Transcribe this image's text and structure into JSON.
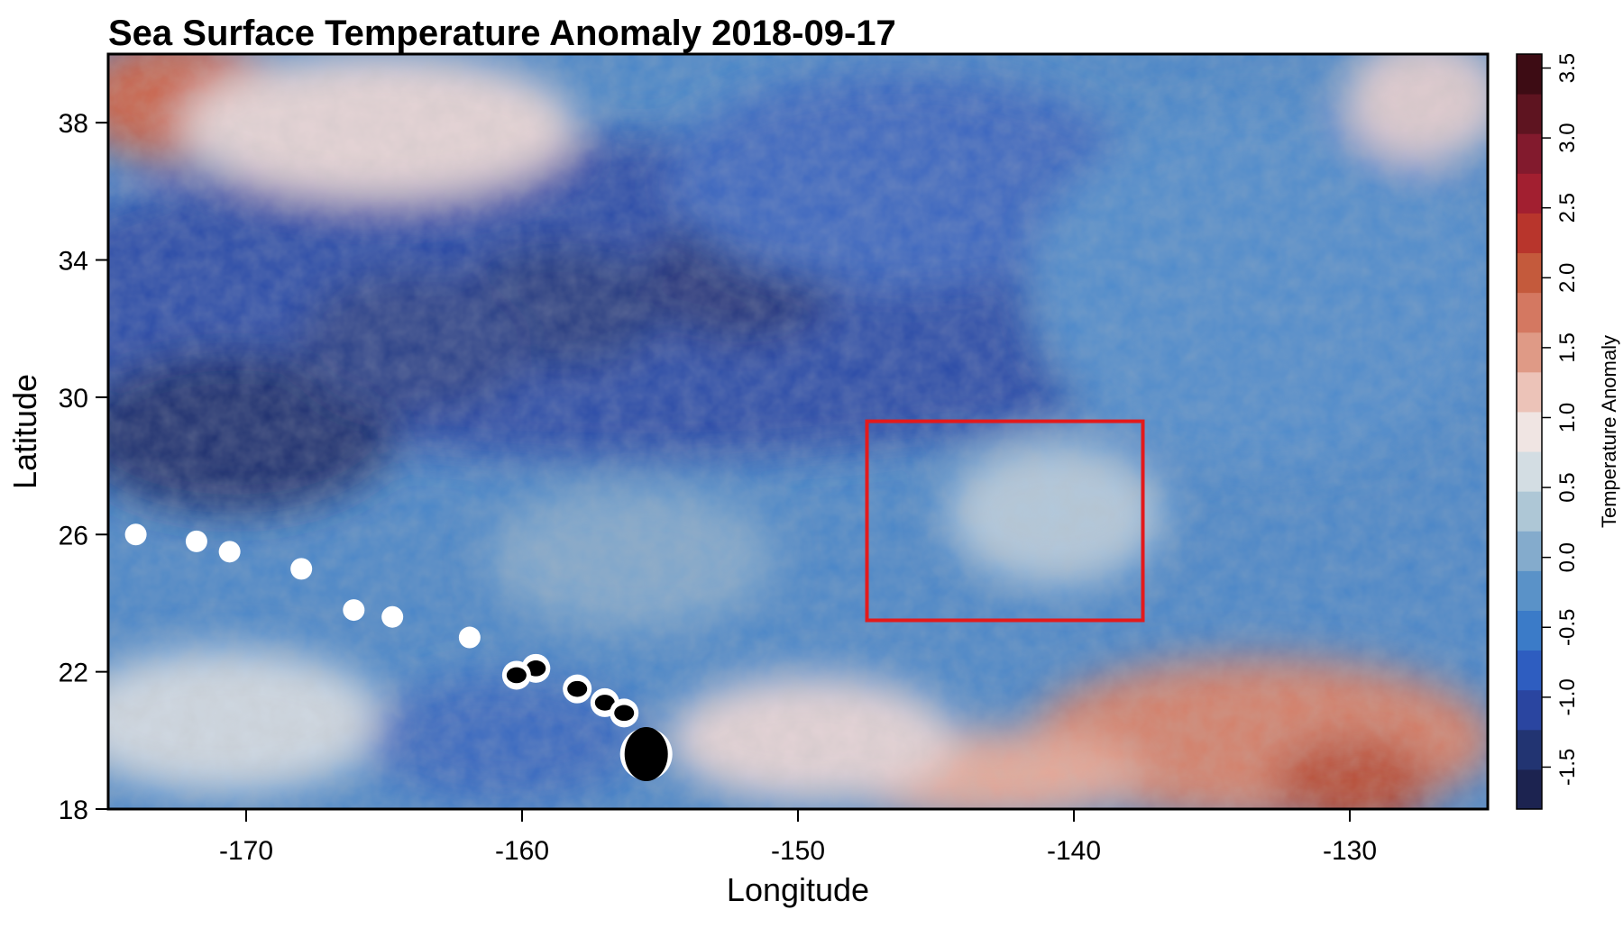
{
  "chart_data": {
    "type": "heatmap",
    "title": "Sea Surface Temperature Anomaly 2018-09-17",
    "xlabel": "Longitude",
    "ylabel": "Latitude",
    "xlim": [
      -175,
      -125
    ],
    "ylim": [
      18,
      40
    ],
    "x_ticks": [
      -170,
      -160,
      -150,
      -140,
      -130
    ],
    "y_ticks": [
      18,
      22,
      26,
      30,
      34,
      38
    ],
    "x_tick_labels": [
      "-170",
      "-160",
      "-150",
      "-140",
      "-130"
    ],
    "y_tick_labels": [
      "18",
      "22",
      "26",
      "30",
      "34",
      "38"
    ],
    "colorbar": {
      "label": "Temperature Anomaly",
      "range": [
        -1.8,
        3.6
      ],
      "ticks": [
        -1.5,
        -1.0,
        -0.5,
        0.0,
        0.5,
        1.0,
        1.5,
        2.0,
        2.5,
        3.0,
        3.5
      ],
      "tick_labels": [
        "-1.5",
        "-1.0",
        "-0.5",
        "0.0",
        "0.5",
        "1.0",
        "1.5",
        "2.0",
        "2.5",
        "3.0",
        "3.5"
      ],
      "colors": [
        "#1c2350",
        "#223472",
        "#2a45a0",
        "#2e5dc0",
        "#3b7bc8",
        "#5a92c8",
        "#84abcc",
        "#aec7d6",
        "#d3dde3",
        "#f0e5e3",
        "#ecc3b8",
        "#df9a86",
        "#d47861",
        "#c45a3c",
        "#b8352c",
        "#a21f30",
        "#821a2d",
        "#5e1420",
        "#3d0c14"
      ]
    },
    "highlight_box": {
      "lon": [
        -147.5,
        -137.5
      ],
      "lat": [
        23.5,
        29.3
      ],
      "color": "#e31a1c"
    },
    "islands": [
      {
        "lon": -174.0,
        "lat": 26.0
      },
      {
        "lon": -171.8,
        "lat": 25.8
      },
      {
        "lon": -170.6,
        "lat": 25.5
      },
      {
        "lon": -168.0,
        "lat": 25.0
      },
      {
        "lon": -166.1,
        "lat": 23.8
      },
      {
        "lon": -164.7,
        "lat": 23.6
      },
      {
        "lon": -161.9,
        "lat": 23.0
      },
      {
        "lon": -159.5,
        "lat": 22.1
      },
      {
        "lon": -160.2,
        "lat": 21.9
      },
      {
        "lon": -158.0,
        "lat": 21.5
      },
      {
        "lon": -157.0,
        "lat": 21.1
      },
      {
        "lon": -156.3,
        "lat": 20.8
      },
      {
        "lon": -155.5,
        "lat": 19.6
      }
    ]
  }
}
